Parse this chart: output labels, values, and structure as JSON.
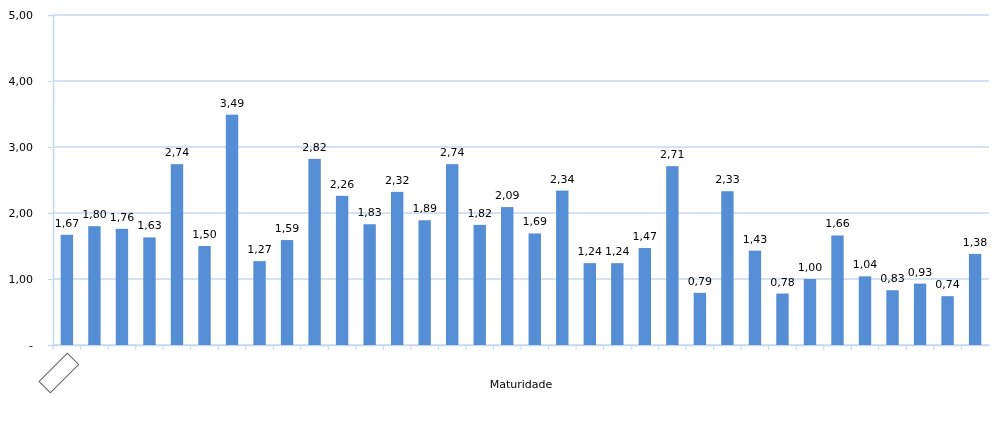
{
  "chart_data": {
    "type": "bar",
    "xlabel": "Maturidade",
    "categories": [
      null,
      null,
      null,
      null,
      null,
      null,
      null,
      null,
      null,
      null,
      null,
      null,
      null,
      null,
      null,
      null,
      null,
      null,
      null,
      null,
      null,
      null,
      null,
      null,
      null,
      null,
      null,
      null,
      null,
      null,
      null,
      null,
      null,
      null
    ],
    "series": [
      {
        "color": "#558ed5",
        "values": [
          1.67,
          1.8,
          1.76,
          1.63,
          2.74,
          1.5,
          3.49,
          1.27,
          1.59,
          2.82,
          2.26,
          1.83,
          2.32,
          1.89,
          2.74,
          1.82,
          2.09,
          1.69,
          2.34,
          1.24,
          1.24,
          1.47,
          2.71,
          0.79,
          2.33,
          1.43,
          0.78,
          1.0,
          1.66,
          1.04,
          0.83,
          0.93,
          0.74,
          1.38
        ],
        "value_labels": [
          "1,67",
          "1,80",
          "1,76",
          "1,63",
          "2,74",
          "1,50",
          "3,49",
          "1,27",
          "1,59",
          "2,82",
          "2,26",
          "1,83",
          "2,32",
          "1,89",
          "2,74",
          "1,82",
          "2,09",
          "1,69",
          "2,34",
          "1,24",
          "1,24",
          "1,47",
          "2,71",
          "0,79",
          "2,33",
          "1,43",
          "0,78",
          "1,00",
          "1,66",
          "1,04",
          "0,83",
          "0,93",
          "0,74",
          "1,38"
        ]
      }
    ],
    "ylim": [
      0,
      5
    ],
    "yticks": [
      {
        "value": 0,
        "label": "-"
      },
      {
        "value": 1,
        "label": "1,00"
      },
      {
        "value": 2,
        "label": "2,00"
      },
      {
        "value": 3,
        "label": "3,00"
      },
      {
        "value": 4,
        "label": "4,00"
      },
      {
        "value": 5,
        "label": "5,00"
      }
    ],
    "grid": "y"
  }
}
